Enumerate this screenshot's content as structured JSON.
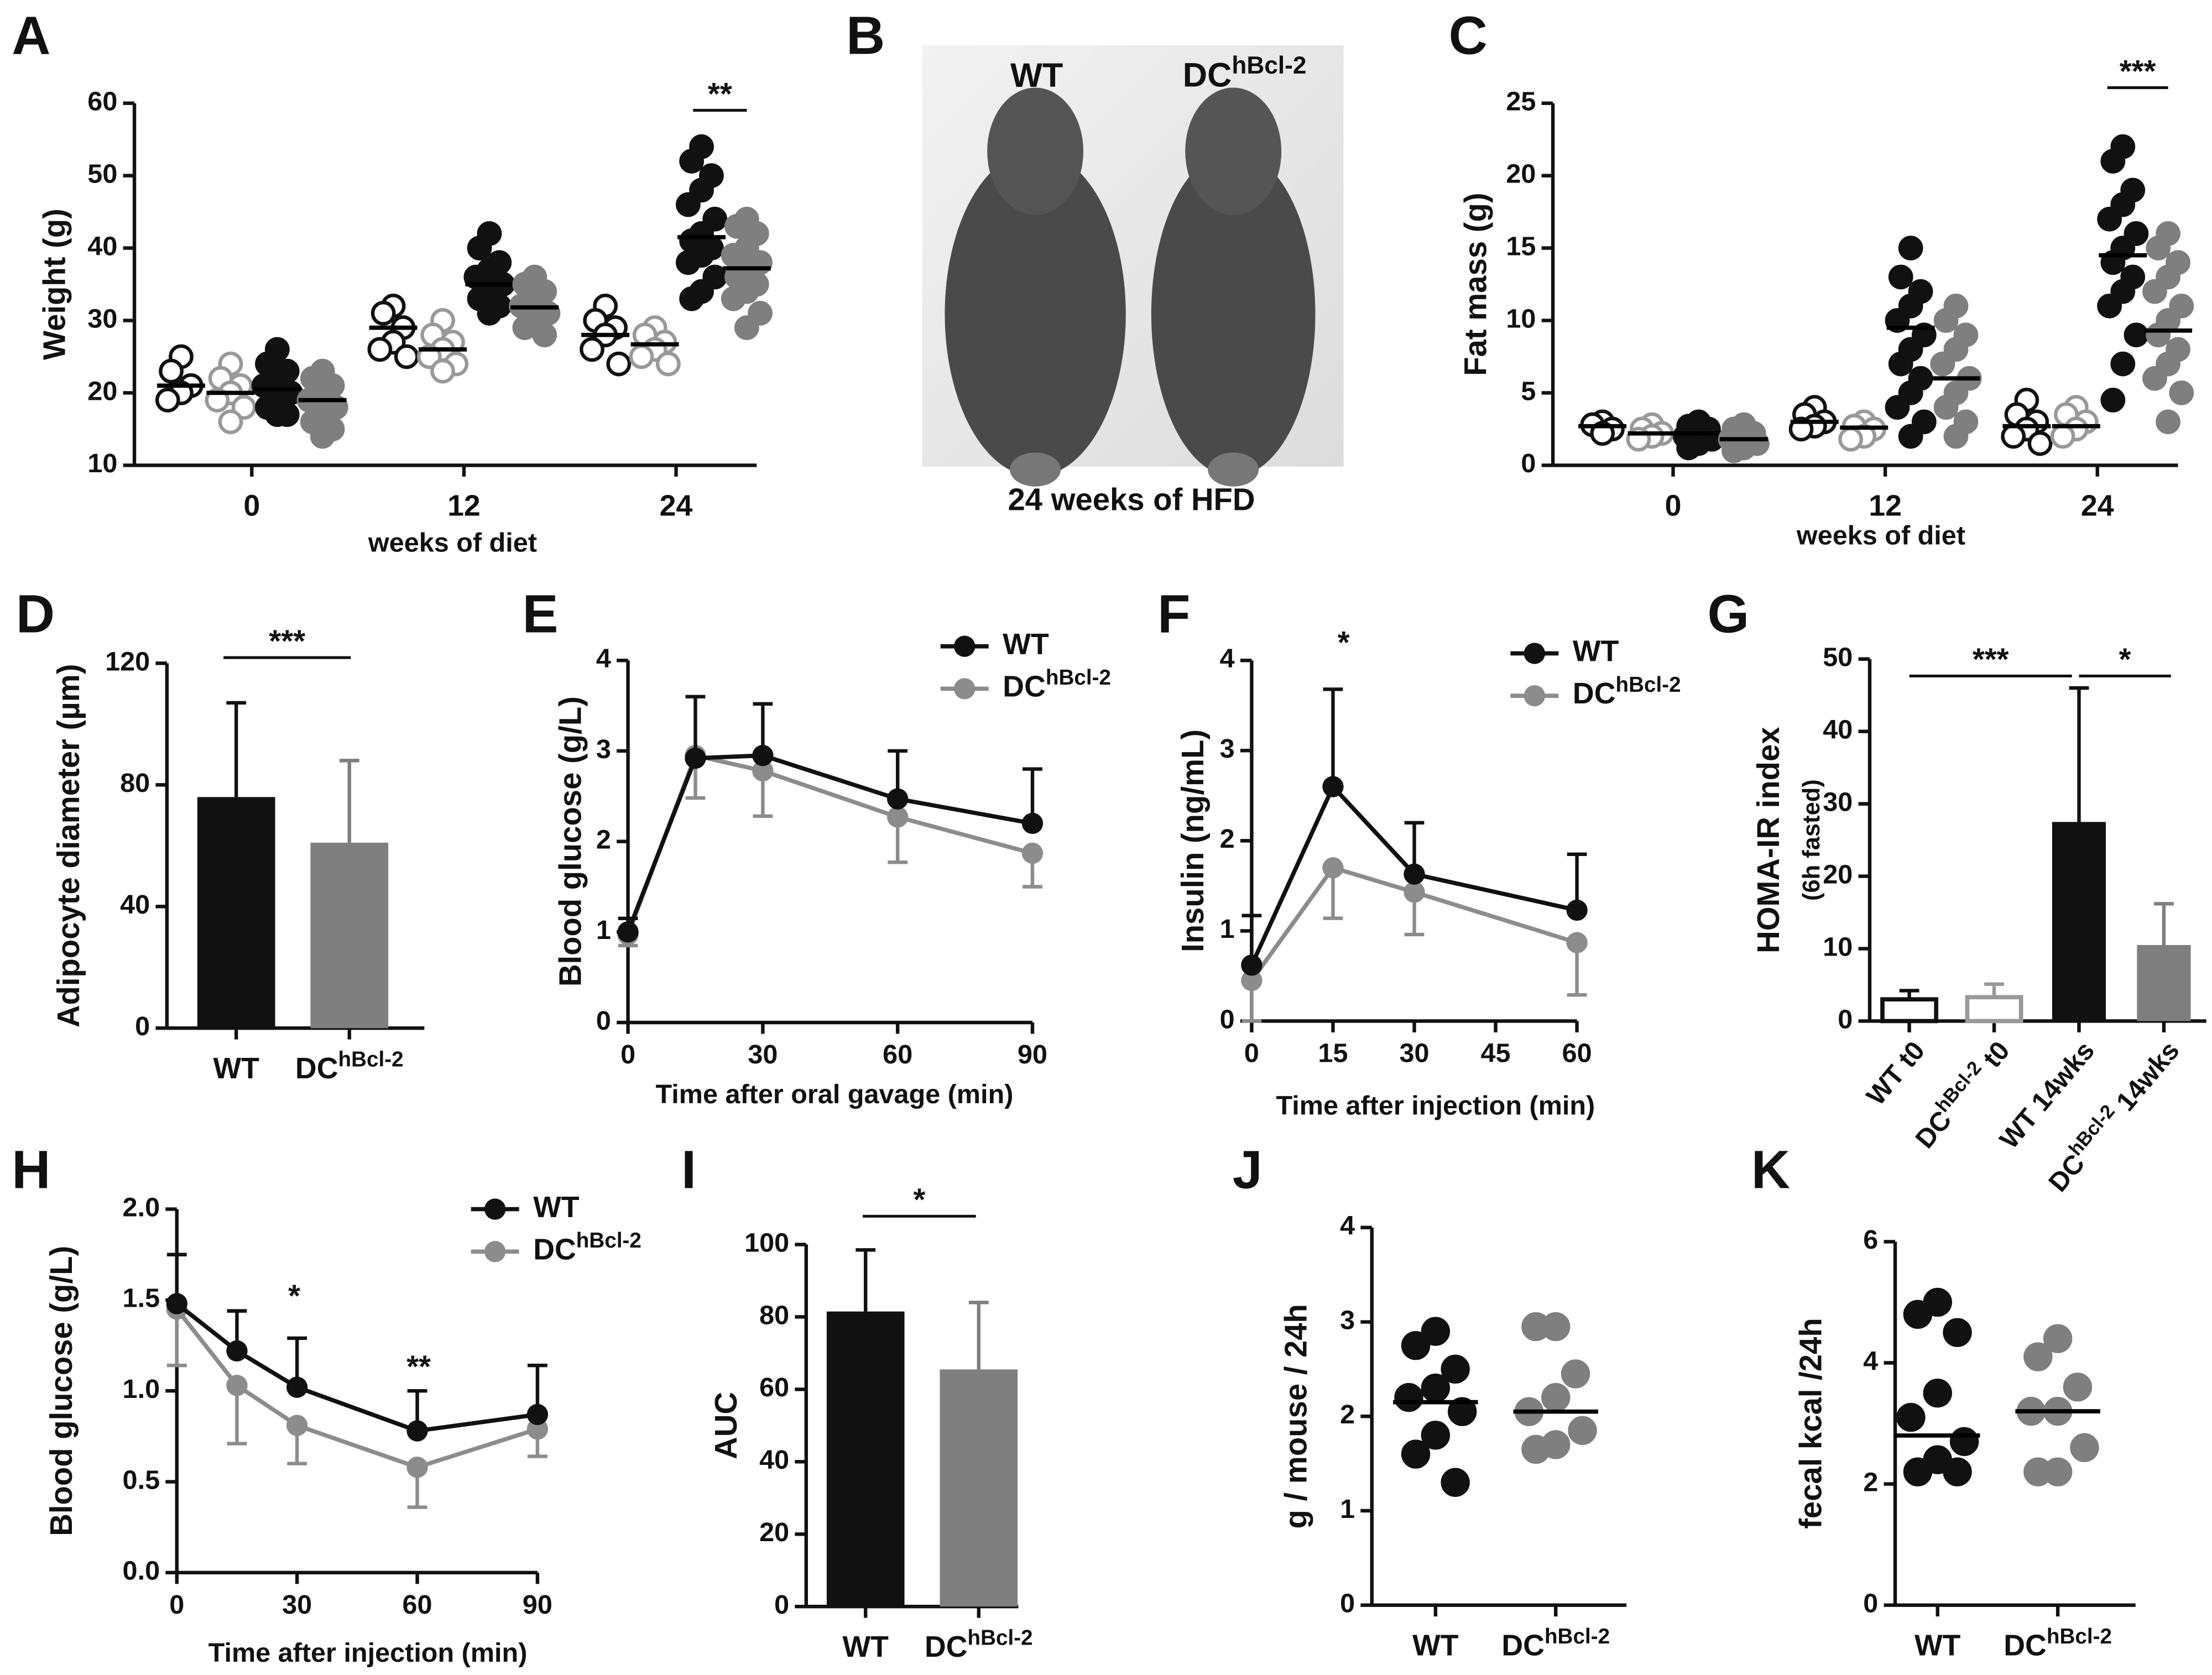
{
  "chart_data": [
    {
      "type": "dot",
      "panel": "A",
      "ylabel": "Weight (g)",
      "xlabel": "weeks of diet",
      "categories": [
        0,
        12,
        24
      ],
      "ylim": [
        10,
        60
      ],
      "yticks": [
        10,
        20,
        30,
        40,
        50,
        60
      ],
      "series": [
        {
          "color": "#111111",
          "filled": false,
          "values": [
            [
              25,
              23,
              21,
              20,
              19
            ],
            [
              32,
              31,
              29,
              27,
              26,
              25
            ],
            [
              32,
              30,
              29,
              28,
              26,
              24
            ]
          ],
          "means": [
            21,
            29,
            28
          ]
        },
        {
          "color": "#999999",
          "filled": false,
          "values": [
            [
              24,
              22,
              21,
              20,
              19,
              18,
              16
            ],
            [
              30,
              28,
              27,
              26,
              25,
              24,
              23
            ],
            [
              29,
              28,
              27,
              26,
              25,
              24
            ]
          ],
          "means": [
            20,
            26,
            26.7
          ]
        },
        {
          "color": "#111111",
          "filled": true,
          "values": [
            [
              26,
              24,
              23,
              22,
              21,
              20,
              19,
              18,
              17,
              17
            ],
            [
              42,
              40,
              38,
              37,
              36,
              35,
              34,
              33,
              32,
              31
            ],
            [
              54,
              52,
              50,
              48,
              46,
              44,
              42,
              41,
              40,
              39,
              38,
              36,
              34,
              33
            ]
          ],
          "means": [
            20.5,
            35,
            41.5
          ]
        },
        {
          "color": "#7f7f7f",
          "filled": true,
          "values": [
            [
              23,
              22,
              21,
              20,
              19,
              18,
              17,
              16,
              15,
              14
            ],
            [
              36,
              35,
              34,
              33,
              32,
              31,
              30,
              29,
              28
            ],
            [
              44,
              43,
              42,
              40,
              39,
              38,
              37,
              36,
              35,
              34,
              33,
              31,
              29
            ]
          ],
          "means": [
            19,
            31.8,
            37.2
          ]
        }
      ],
      "annotations": [
        "**"
      ]
    },
    {
      "type": "photo",
      "panel": "B",
      "labels": [
        "WT",
        {
          "text": "DC",
          "sup": "hBcl-2"
        }
      ],
      "caption": "24 weeks of HFD"
    },
    {
      "type": "dot",
      "panel": "C",
      "ylabel": "Fat mass  (g)",
      "xlabel": "weeks of diet",
      "categories": [
        0,
        12,
        24
      ],
      "ylim": [
        0,
        25
      ],
      "yticks": [
        0,
        5,
        10,
        15,
        20,
        25
      ],
      "series": [
        {
          "color": "#111111",
          "filled": false,
          "values": [
            [
              3,
              2.8,
              2.5,
              2.2
            ],
            [
              4,
              3.5,
              3,
              2.7,
              2.5
            ],
            [
              4.5,
              3.5,
              3,
              2.5,
              2,
              1.5
            ]
          ],
          "means": [
            2.7,
            3,
            2.7
          ]
        },
        {
          "color": "#999999",
          "filled": false,
          "values": [
            [
              2.8,
              2.5,
              2.2,
              2,
              1.8
            ],
            [
              3,
              2.7,
              2.5,
              2,
              1.8
            ],
            [
              4,
              3.5,
              3,
              2.5,
              2
            ]
          ],
          "means": [
            2.2,
            2.6,
            2.7
          ]
        },
        {
          "color": "#111111",
          "filled": true,
          "values": [
            [
              3,
              2.7,
              2.5,
              2.2,
              2,
              1.8,
              1.5,
              1.2
            ],
            [
              15,
              13,
              12,
              11,
              10,
              9,
              8,
              7,
              6,
              5,
              4,
              3,
              2
            ],
            [
              22,
              21,
              19,
              18,
              17,
              16,
              15,
              14,
              13,
              12,
              11,
              9,
              7,
              4.5
            ]
          ],
          "means": [
            2.2,
            9.5,
            14.5
          ]
        },
        {
          "color": "#7f7f7f",
          "filled": true,
          "values": [
            [
              2.8,
              2.5,
              2.2,
              2,
              1.8,
              1.5,
              1.2,
              1
            ],
            [
              11,
              10,
              9,
              8,
              7,
              6,
              5,
              4,
              3,
              2
            ],
            [
              16,
              15,
              14,
              13,
              12,
              11,
              10,
              9,
              8,
              7,
              6,
              5,
              3
            ]
          ],
          "means": [
            1.8,
            6,
            9.3
          ]
        }
      ],
      "annotations": [
        "***"
      ]
    },
    {
      "type": "bar",
      "panel": "D",
      "ylabel": "Adipocyte diameter  (µm)",
      "categories": [
        "WT",
        {
          "text": "DC",
          "sup": "hBcl-2"
        }
      ],
      "values": [
        76,
        61
      ],
      "errors": [
        31,
        27
      ],
      "colors": [
        "#111111",
        "#7f7f7f"
      ],
      "filled": [
        true,
        true
      ],
      "ylim": [
        0,
        120
      ],
      "yticks": [
        0,
        40,
        80,
        120
      ],
      "annotations": [
        "***"
      ]
    },
    {
      "type": "line",
      "panel": "E",
      "ylabel": "Blood glucose (g/L)",
      "xlabel": "Time after oral gavage (min)",
      "x": [
        0,
        15,
        30,
        60,
        90
      ],
      "xlim": [
        0,
        90
      ],
      "xticks": [
        0,
        30,
        60,
        90
      ],
      "ylim": [
        0,
        4
      ],
      "yticks": [
        0,
        1,
        2,
        3,
        4
      ],
      "series": [
        {
          "name": "WT",
          "color": "#111111",
          "error_direction": "up",
          "values": [
            1,
            2.92,
            2.95,
            2.47,
            2.2
          ],
          "errors": [
            0.15,
            0.68,
            0.57,
            0.53,
            0.6
          ]
        },
        {
          "name": {
            "text": "DC",
            "sup": "hBcl-2"
          },
          "color": "#8c8c8c",
          "error_direction": "down",
          "values": [
            0.97,
            2.95,
            2.78,
            2.27,
            1.87
          ],
          "errors": [
            0.12,
            0.47,
            0.5,
            0.5,
            0.37
          ]
        }
      ],
      "annotations": []
    },
    {
      "type": "line",
      "panel": "F",
      "ylabel": "Insulin (ng/mL)",
      "xlabel": "Time after injection (min)",
      "x": [
        0,
        15,
        30,
        60
      ],
      "xlim": [
        0,
        60
      ],
      "xticks": [
        0,
        15,
        30,
        45,
        60
      ],
      "ylim": [
        0,
        4
      ],
      "yticks": [
        0,
        1,
        2,
        3,
        4
      ],
      "series": [
        {
          "name": "WT",
          "color": "#111111",
          "error_direction": "up",
          "values": [
            0.62,
            2.6,
            1.63,
            1.23
          ],
          "errors": [
            0.55,
            1.08,
            0.57,
            0.62
          ]
        },
        {
          "name": {
            "text": "DC",
            "sup": "hBcl-2"
          },
          "color": "#8c8c8c",
          "error_direction": "down",
          "values": [
            0.45,
            1.7,
            1.43,
            0.87
          ],
          "errors": [
            0.45,
            0.56,
            0.47,
            0.58
          ]
        }
      ],
      "annotations": [
        "*"
      ]
    },
    {
      "type": "bar",
      "panel": "G",
      "ylabel": "HOMA-IR index",
      "ylabel_sub": "(6h fasted)",
      "categories": [
        "WT t0",
        {
          "text": "DC",
          "sup": "hBcl-2",
          "after": " t0"
        },
        "WT 14wks",
        {
          "text": "DC",
          "sup": "hBcl-2",
          "after": " 14wks"
        }
      ],
      "values": [
        3,
        3.3,
        27.5,
        10.5
      ],
      "errors": [
        1.2,
        1.8,
        18.5,
        5.7
      ],
      "colors": [
        "#111111",
        "#999999",
        "#111111",
        "#7f7f7f"
      ],
      "filled": [
        false,
        false,
        true,
        true
      ],
      "ylim": [
        0,
        50
      ],
      "yticks": [
        0,
        10,
        20,
        30,
        40,
        50
      ],
      "annotations": [
        "***",
        "*"
      ]
    },
    {
      "type": "line",
      "panel": "H",
      "ylabel": "Blood glucose (g/L)",
      "xlabel": "Time after injection (min)",
      "x": [
        0,
        15,
        30,
        60,
        90
      ],
      "xlim": [
        0,
        90
      ],
      "xticks": [
        0,
        30,
        60,
        90
      ],
      "ylim": [
        0,
        2
      ],
      "yticks": [
        {
          "value": 0,
          "label": "0.0"
        },
        0.5,
        {
          "value": 1,
          "label": "1.0"
        },
        1.5,
        {
          "value": 2,
          "label": "2.0"
        }
      ],
      "series": [
        {
          "name": "WT",
          "color": "#111111",
          "error_direction": "up",
          "values": [
            1.48,
            1.22,
            1.02,
            0.78,
            0.87
          ],
          "errors": [
            0.27,
            0.22,
            0.27,
            0.22,
            0.27
          ]
        },
        {
          "name": {
            "text": "DC",
            "sup": "hBcl-2"
          },
          "color": "#8c8c8c",
          "error_direction": "down",
          "values": [
            1.45,
            1.03,
            0.81,
            0.58,
            0.79
          ],
          "errors": [
            0.31,
            0.32,
            0.21,
            0.22,
            0.15
          ]
        }
      ],
      "annotations": [
        "*",
        "**"
      ]
    },
    {
      "type": "bar",
      "panel": "I",
      "ylabel": "AUC",
      "categories": [
        "WT",
        {
          "text": "DC",
          "sup": "hBcl-2"
        }
      ],
      "values": [
        81.5,
        65.5
      ],
      "errors": [
        17,
        18.5
      ],
      "colors": [
        "#111111",
        "#7f7f7f"
      ],
      "filled": [
        true,
        true
      ],
      "ylim": [
        0,
        100
      ],
      "yticks": [
        0,
        20,
        40,
        60,
        80,
        100
      ],
      "annotations": [
        "*"
      ]
    },
    {
      "type": "dot",
      "panel": "J",
      "ylabel": "g / mouse / 24h",
      "categories": [
        "WT",
        {
          "text": "DC",
          "sup": "hBcl-2"
        }
      ],
      "ylim": [
        0,
        4
      ],
      "yticks": [
        0,
        1,
        2,
        3,
        4
      ],
      "colors": [
        "#111111",
        "#7f7f7f"
      ],
      "values": [
        [
          2.9,
          2.75,
          2.5,
          2.3,
          2.2,
          2.05,
          1.8,
          1.6,
          1.3
        ],
        [
          2.95,
          2.95,
          2.45,
          2.2,
          2.05,
          1.85,
          1.7,
          1.65
        ]
      ],
      "means": [
        2.15,
        2.05
      ],
      "annotations": []
    },
    {
      "type": "dot",
      "panel": "K",
      "ylabel": "fecal kcal /24h",
      "categories": [
        "WT",
        {
          "text": "DC",
          "sup": "hBcl-2"
        }
      ],
      "ylim": [
        0,
        6
      ],
      "yticks": [
        0,
        2,
        4,
        6
      ],
      "colors": [
        "#111111",
        "#7f7f7f"
      ],
      "values": [
        [
          5,
          4.8,
          4.5,
          3.5,
          3.1,
          2.7,
          2.4,
          2.2,
          2.2
        ],
        [
          4.4,
          4.1,
          3.6,
          3.2,
          3.2,
          2.6,
          2.2,
          2.2
        ]
      ],
      "means": [
        2.8,
        3.2
      ],
      "annotations": []
    }
  ]
}
